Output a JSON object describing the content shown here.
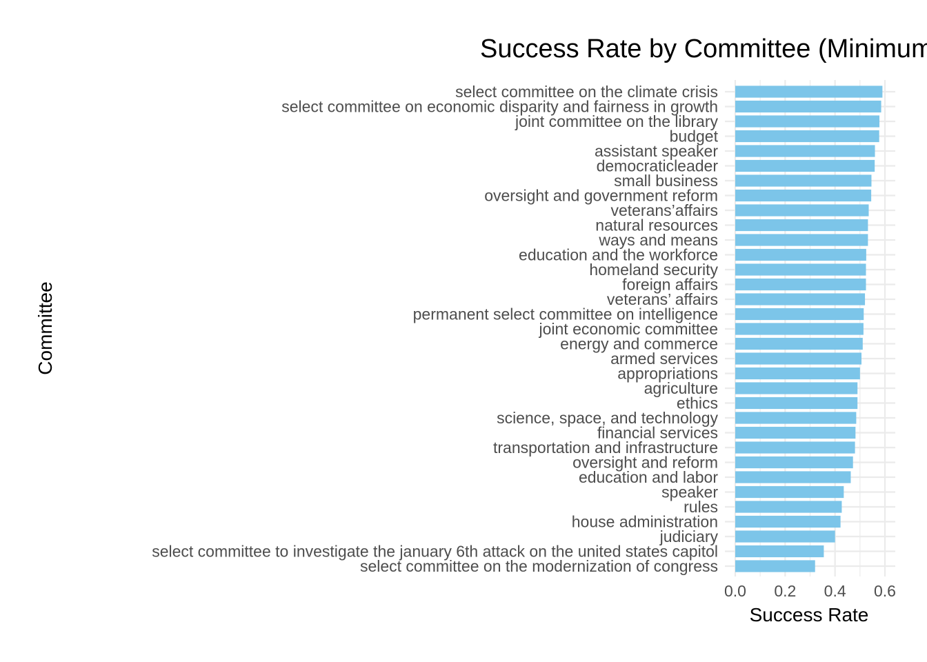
{
  "chart_data": {
    "type": "bar",
    "orientation": "horizontal",
    "title": "Success Rate by Committee (Minimum",
    "xlabel": "Success Rate",
    "ylabel": "Committee",
    "xlim": [
      0,
      0.62
    ],
    "xticks": [
      0.0,
      0.2,
      0.4,
      0.6
    ],
    "xtick_labels": [
      "0.0",
      "0.2",
      "0.4",
      "0.6"
    ],
    "grid": true,
    "bar_color": "#7CC5E9",
    "grid_color": "#EBEBEB",
    "categories": [
      "select committee on the climate crisis",
      "select committee on economic disparity and fairness in growth",
      "joint committee on the library",
      "budget",
      "assistant speaker",
      "democraticleader",
      "small business",
      "oversight and government reform",
      "veterans’affairs",
      "natural resources",
      "ways and means",
      "education and the workforce",
      "homeland security",
      "foreign affairs",
      "veterans’ affairs",
      "permanent select committee on intelligence",
      "joint economic committee",
      "energy and commerce",
      "armed services",
      "appropriations",
      "agriculture",
      "ethics",
      "science, space, and technology",
      "financial services",
      "transportation and infrastructure",
      "oversight and reform",
      "education and labor",
      "speaker",
      "rules",
      "house administration",
      "judiciary",
      "select committee to investigate the january 6th attack on the united states capitol",
      "select committee on the modernization of congress"
    ],
    "values": [
      0.59,
      0.585,
      0.578,
      0.577,
      0.56,
      0.559,
      0.546,
      0.545,
      0.535,
      0.532,
      0.532,
      0.525,
      0.524,
      0.524,
      0.52,
      0.515,
      0.514,
      0.511,
      0.506,
      0.5,
      0.49,
      0.49,
      0.485,
      0.482,
      0.48,
      0.472,
      0.463,
      0.435,
      0.427,
      0.422,
      0.4,
      0.355,
      0.32
    ]
  }
}
